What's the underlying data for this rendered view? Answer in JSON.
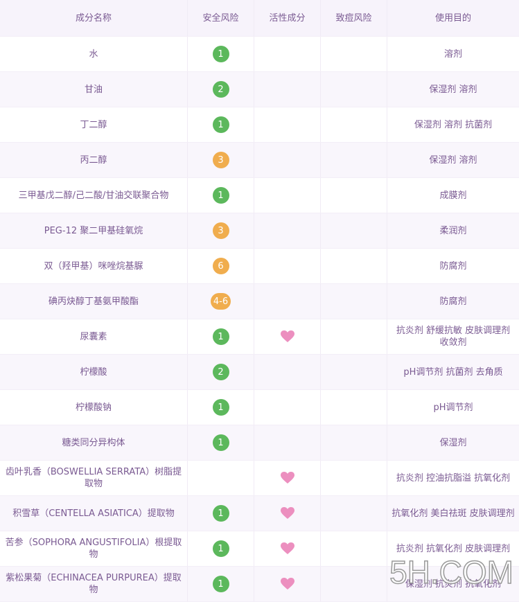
{
  "table": {
    "header": [
      "成分名称",
      "安全风险",
      "活性成分",
      "致痘风险",
      "使用目的"
    ],
    "rows": [
      {
        "name": "水",
        "risk": "1",
        "active": false,
        "purpose": "溶剂"
      },
      {
        "name": "甘油",
        "risk": "2",
        "active": false,
        "purpose": "保湿剂 溶剂"
      },
      {
        "name": "丁二醇",
        "risk": "1",
        "active": false,
        "purpose": "保湿剂 溶剂 抗菌剂"
      },
      {
        "name": "丙二醇",
        "risk": "3",
        "active": false,
        "purpose": "保湿剂 溶剂"
      },
      {
        "name": "三甲基戊二醇/己二酸/甘油交联聚合物",
        "risk": "1",
        "active": false,
        "purpose": "成膜剂"
      },
      {
        "name": "PEG-12 聚二甲基硅氧烷",
        "risk": "3",
        "active": false,
        "purpose": "柔润剂"
      },
      {
        "name": "双（羟甲基）咪唑烷基脲",
        "risk": "6",
        "active": false,
        "purpose": "防腐剂"
      },
      {
        "name": "碘丙炔醇丁基氨甲酸酯",
        "risk": "4-6",
        "active": false,
        "purpose": "防腐剂"
      },
      {
        "name": "尿囊素",
        "risk": "1",
        "active": true,
        "purpose": "抗炎剂 舒缓抗敏 皮肤调理剂 收敛剂"
      },
      {
        "name": "柠檬酸",
        "risk": "2",
        "active": false,
        "purpose": "pH调节剂 抗菌剂 去角质"
      },
      {
        "name": "柠檬酸钠",
        "risk": "1",
        "active": false,
        "purpose": "pH调节剂"
      },
      {
        "name": "糖类同分异构体",
        "risk": "1",
        "active": false,
        "purpose": "保湿剂"
      },
      {
        "name": "齿叶乳香（BOSWELLIA SERRATA）树脂提取物",
        "risk": null,
        "active": true,
        "purpose": "抗炎剂 控油抗脂溢 抗氧化剂"
      },
      {
        "name": "积雪草（CENTELLA ASIATICA）提取物",
        "risk": "1",
        "active": true,
        "purpose": "抗氧化剂 美白祛斑 皮肤调理剂"
      },
      {
        "name": "苦参（SOPHORA ANGUSTIFOLIA）根提取物",
        "risk": "1",
        "active": true,
        "purpose": "抗炎剂 抗氧化剂 皮肤调理剂"
      },
      {
        "name": "紫松果菊（ECHINACEA PURPUREA）提取物",
        "risk": "1",
        "active": true,
        "purpose": "保湿剂 抗炎剂 抗氧化剂"
      }
    ]
  },
  "watermark": "5H.COM"
}
